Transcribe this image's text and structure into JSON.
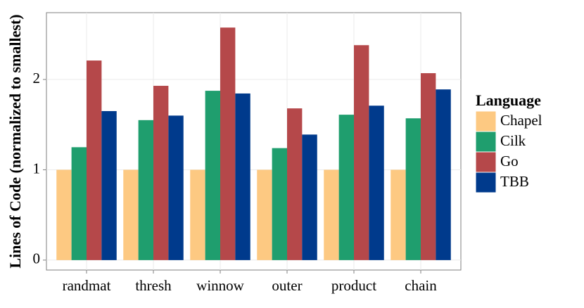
{
  "chart_data": {
    "type": "bar",
    "y_label": "Lines of Code (normalized to smallest)",
    "categories": [
      "randmat",
      "thresh",
      "winnow",
      "outer",
      "product",
      "chain"
    ],
    "legend_title": "Language",
    "series": [
      {
        "name": "Chapel",
        "color": "#fdc982",
        "values": [
          1,
          1,
          1,
          1,
          1,
          1
        ]
      },
      {
        "name": "Cilk",
        "color": "#1f9e6e",
        "values": [
          1.25,
          1.55,
          1.875,
          1.24,
          1.61,
          1.57
        ]
      },
      {
        "name": "Go",
        "color": "#b5484a",
        "values": [
          2.21,
          1.93,
          2.575,
          1.68,
          2.38,
          2.07
        ]
      },
      {
        "name": "TBB",
        "color": "#003a8c",
        "values": [
          1.65,
          1.6,
          1.845,
          1.39,
          1.71,
          1.89
        ]
      }
    ],
    "ylim": [
      -0.11,
      2.74
    ],
    "yticks": [
      0,
      1,
      2
    ],
    "grid": true,
    "legend_position": "right"
  }
}
